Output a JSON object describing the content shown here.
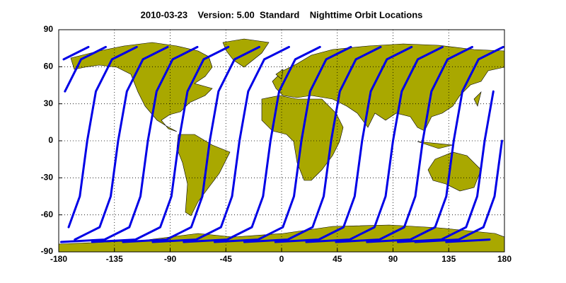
{
  "chart_data": {
    "type": "map-tracks",
    "title": "2010-03-23    Version: 5.00  Standard    Nighttime Orbit Locations",
    "color": "#0000e6",
    "land_color": "#a9a800",
    "grid": true,
    "xlim": [
      -180,
      180
    ],
    "xticks": [
      -180,
      -135,
      -90,
      -45,
      0,
      45,
      90,
      135,
      180
    ],
    "ylim": [
      -90,
      90
    ],
    "yticks": [
      -90,
      -60,
      -30,
      0,
      30,
      60,
      90
    ],
    "series": [
      {
        "x": [
          108,
          143,
          163,
          172,
          178,
          null,
          -175,
          -162,
          -142
        ],
        "values": [
          -82,
          -80,
          -70,
          -45,
          0,
          null,
          40,
          66,
          76
        ]
      },
      {
        "x": [
          133,
          168,
          null,
          -172,
          -163,
          -157,
          -150,
          -137,
          -117
        ],
        "values": [
          -82,
          -80,
          null,
          -70,
          -45,
          0,
          40,
          66,
          76
        ]
      },
      {
        "x": [
          158,
          null,
          -167,
          -147,
          -138,
          -132,
          -125,
          -112,
          -92
        ],
        "values": [
          -82,
          null,
          -80,
          -70,
          -45,
          0,
          40,
          66,
          76
        ]
      },
      {
        "x": [
          -178,
          -143,
          -123,
          -114,
          -108,
          -101,
          -88,
          -68
        ],
        "values": [
          -82,
          -80,
          -70,
          -45,
          0,
          40,
          66,
          76
        ]
      },
      {
        "x": [
          -153,
          -118,
          -98,
          -89,
          -83,
          -76,
          -63,
          -43
        ],
        "values": [
          -82,
          -80,
          -70,
          -45,
          0,
          40,
          66,
          76
        ]
      },
      {
        "x": [
          -128,
          -93,
          -73,
          -64,
          -58,
          -51,
          -38,
          -18
        ],
        "values": [
          -82,
          -80,
          -70,
          -45,
          0,
          40,
          66,
          76
        ]
      },
      {
        "x": [
          -104,
          -69,
          -49,
          -40,
          -34,
          -27,
          -14,
          6
        ],
        "values": [
          -82,
          -80,
          -70,
          -45,
          0,
          40,
          66,
          76
        ]
      },
      {
        "x": [
          -79,
          -44,
          -24,
          -15,
          -9,
          -2,
          11,
          31
        ],
        "values": [
          -82,
          -80,
          -70,
          -45,
          0,
          40,
          66,
          76
        ]
      },
      {
        "x": [
          -54,
          -19,
          1,
          10,
          16,
          23,
          36,
          56
        ],
        "values": [
          -82,
          -80,
          -70,
          -45,
          0,
          40,
          66,
          76
        ]
      },
      {
        "x": [
          -30,
          5,
          25,
          34,
          40,
          47,
          60,
          80
        ],
        "values": [
          -82,
          -80,
          -70,
          -45,
          0,
          40,
          66,
          76
        ]
      },
      {
        "x": [
          -5,
          30,
          50,
          59,
          65,
          72,
          85,
          105
        ],
        "values": [
          -82,
          -80,
          -70,
          -45,
          0,
          40,
          66,
          76
        ]
      },
      {
        "x": [
          20,
          55,
          75,
          84,
          90,
          97,
          110,
          130
        ],
        "values": [
          -82,
          -80,
          -70,
          -45,
          0,
          40,
          66,
          76
        ]
      },
      {
        "x": [
          44,
          79,
          99,
          108,
          114,
          121,
          134,
          154
        ],
        "values": [
          -82,
          -80,
          -70,
          -45,
          0,
          40,
          66,
          76
        ]
      },
      {
        "x": [
          69,
          104,
          124,
          133,
          139,
          146,
          159,
          179
        ],
        "values": [
          -82,
          -80,
          -70,
          -45,
          0,
          40,
          66,
          76
        ]
      },
      {
        "x": [
          94,
          129,
          149,
          158,
          164,
          171,
          null,
          -176,
          -156
        ],
        "values": [
          -82,
          -80,
          -70,
          -45,
          0,
          40,
          null,
          66,
          76
        ]
      }
    ]
  }
}
